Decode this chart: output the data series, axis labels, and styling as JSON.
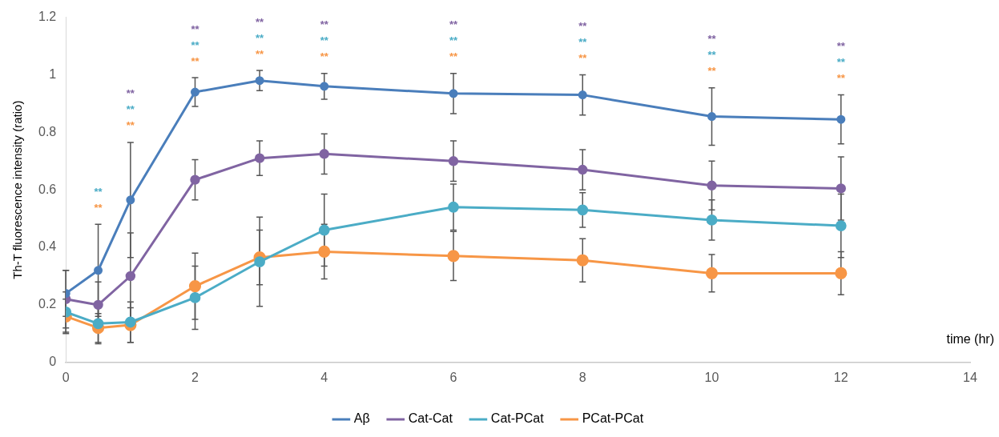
{
  "chart_data": {
    "type": "line",
    "xlabel": "time (hr)",
    "ylabel": "Th-T fluorescence intensity (ratio)",
    "x": [
      0,
      0.5,
      1,
      2,
      3,
      4,
      6,
      8,
      10,
      12
    ],
    "xlim": [
      0,
      14
    ],
    "xticks": [
      0,
      2,
      4,
      6,
      8,
      10,
      12,
      14
    ],
    "ylim": [
      0,
      1.2
    ],
    "yticks": [
      0,
      0.2,
      0.4,
      0.6,
      0.8,
      {
        "value": 1,
        "label": "1"
      },
      1.2
    ],
    "grid": false,
    "legend": "bottom",
    "marker": "circle",
    "line_style": "solid",
    "series": [
      {
        "name": "Aβ",
        "color": "#4a7ebb",
        "values": [
          0.24,
          0.32,
          0.565,
          0.94,
          0.98,
          0.96,
          0.935,
          0.93,
          0.855,
          0.845
        ],
        "errors": [
          0.08,
          0.16,
          0.2,
          0.05,
          0.035,
          0.045,
          0.07,
          0.07,
          0.1,
          0.085
        ]
      },
      {
        "name": "Cat-Cat",
        "color": "#8064a2",
        "values": [
          0.22,
          0.2,
          0.3,
          0.635,
          0.71,
          0.725,
          0.7,
          0.67,
          0.615,
          0.605
        ],
        "errors": [
          0.1,
          0.08,
          0.15,
          0.07,
          0.06,
          0.07,
          0.07,
          0.07,
          0.085,
          0.11
        ]
      },
      {
        "name": "Cat-PCat",
        "color": "#4bacc6",
        "values": [
          0.175,
          0.135,
          0.14,
          0.225,
          0.35,
          0.46,
          0.54,
          0.53,
          0.495,
          0.475
        ],
        "errors": [
          0.07,
          0.07,
          0.07,
          0.11,
          0.155,
          0.125,
          0.08,
          0.06,
          0.07,
          0.11
        ]
      },
      {
        "name": "PCat-PCat",
        "color": "#f79646",
        "values": [
          0.16,
          0.12,
          0.13,
          0.265,
          0.365,
          0.385,
          0.37,
          0.355,
          0.31,
          0.31
        ],
        "errors": [
          0.06,
          0.05,
          0.06,
          0.115,
          0.095,
          0.095,
          0.085,
          0.075,
          0.065,
          0.075
        ]
      }
    ],
    "annotations": [
      "**",
      "**",
      "**",
      "**",
      "**",
      "**",
      "**",
      "**",
      "**",
      "**",
      "**",
      "**",
      "**",
      "**",
      "**",
      "**",
      "**",
      "**",
      "**",
      "**",
      "**",
      "**",
      "**",
      "**",
      "**",
      "**"
    ]
  }
}
